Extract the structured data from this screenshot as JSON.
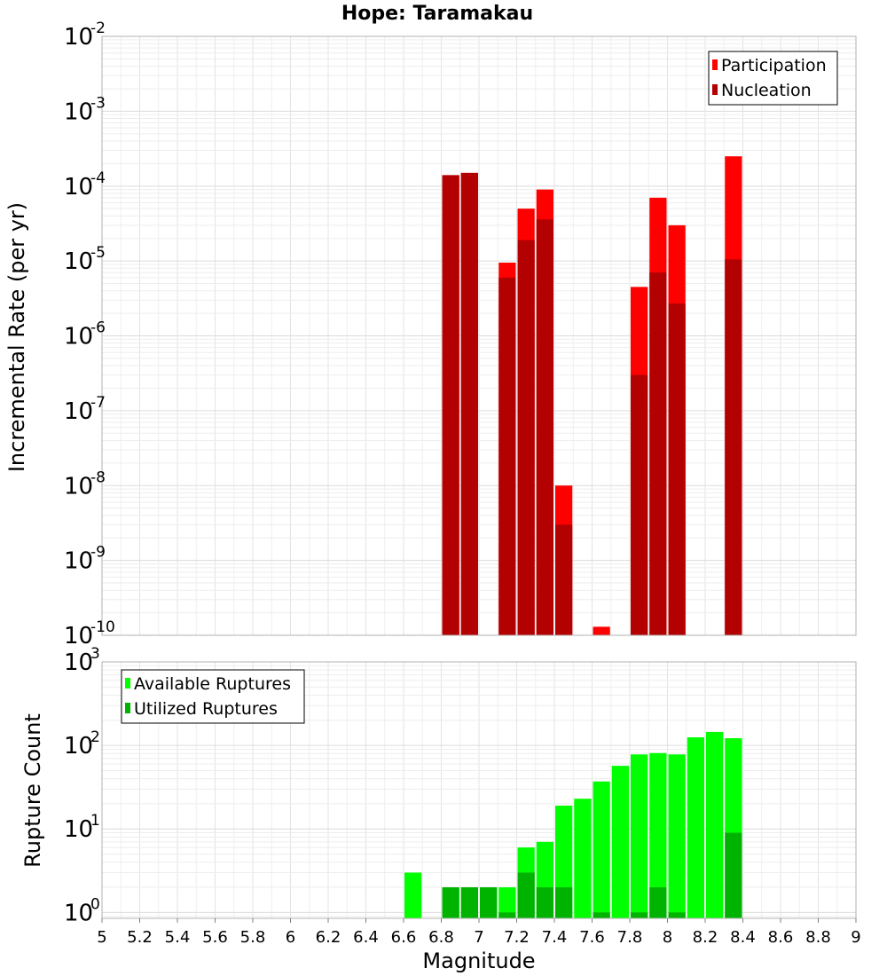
{
  "chart_data": [
    {
      "type": "bar",
      "title": "Hope: Taramakau",
      "xlabel": "Magnitude",
      "ylabel": "Incremental Rate (per yr)",
      "xlim": [
        5,
        9
      ],
      "ylim": [
        1e-10,
        0.01
      ],
      "yscale": "log",
      "ytick_exponents": [
        -10,
        -9,
        -8,
        -7,
        -6,
        -5,
        -4,
        -3,
        -2
      ],
      "grid": true,
      "legend_position": "top-right",
      "bar_width": 0.1,
      "series": [
        {
          "name": "Participation",
          "color": "#ff0000",
          "x": [
            6.85,
            6.95,
            7.15,
            7.25,
            7.35,
            7.45,
            7.65,
            7.85,
            7.95,
            8.05,
            8.35
          ],
          "values": [
            0.00014,
            0.00015,
            9.5e-06,
            5e-05,
            9e-05,
            1e-08,
            1.3e-10,
            4.5e-06,
            7e-05,
            3e-05,
            0.00025
          ]
        },
        {
          "name": "Nucleation",
          "color": "#b30000",
          "x": [
            6.85,
            6.95,
            7.15,
            7.25,
            7.35,
            7.45,
            7.85,
            7.95,
            8.05,
            8.35
          ],
          "values": [
            0.00014,
            0.00015,
            6e-06,
            1.9e-05,
            3.6e-05,
            3e-09,
            3e-07,
            7e-06,
            2.7e-06,
            1.05e-05
          ]
        }
      ]
    },
    {
      "type": "bar",
      "xlabel": "Magnitude",
      "ylabel": "Rupture Count",
      "xlim": [
        5,
        9
      ],
      "ylim": [
        0.85,
        1000
      ],
      "yscale": "log",
      "ytick_exponents": [
        0,
        1,
        2,
        3
      ],
      "xticks": [
        "5",
        "5.2",
        "5.4",
        "5.6",
        "5.8",
        "6",
        "6.2",
        "6.4",
        "6.6",
        "6.8",
        "7",
        "7.2",
        "7.4",
        "7.6",
        "7.8",
        "8",
        "8.2",
        "8.4",
        "8.6",
        "8.8",
        "9"
      ],
      "grid": true,
      "legend_position": "top-left",
      "bar_width": 0.1,
      "series": [
        {
          "name": "Available Ruptures",
          "color": "#00ff00",
          "x": [
            6.65,
            6.85,
            6.95,
            7.05,
            7.15,
            7.25,
            7.35,
            7.45,
            7.55,
            7.65,
            7.75,
            7.85,
            7.95,
            8.05,
            8.15,
            8.25,
            8.35
          ],
          "values": [
            3,
            2,
            2,
            2,
            2,
            6,
            7,
            19,
            23,
            37,
            57,
            78,
            81,
            78,
            125,
            145,
            122
          ]
        },
        {
          "name": "Utilized Ruptures",
          "color": "#00b300",
          "x": [
            6.85,
            6.95,
            7.05,
            7.15,
            7.25,
            7.35,
            7.45,
            7.65,
            7.85,
            7.95,
            8.05,
            8.35
          ],
          "values": [
            2,
            2,
            2,
            1,
            3,
            2,
            2,
            1,
            1,
            2,
            1,
            9
          ]
        }
      ]
    }
  ]
}
